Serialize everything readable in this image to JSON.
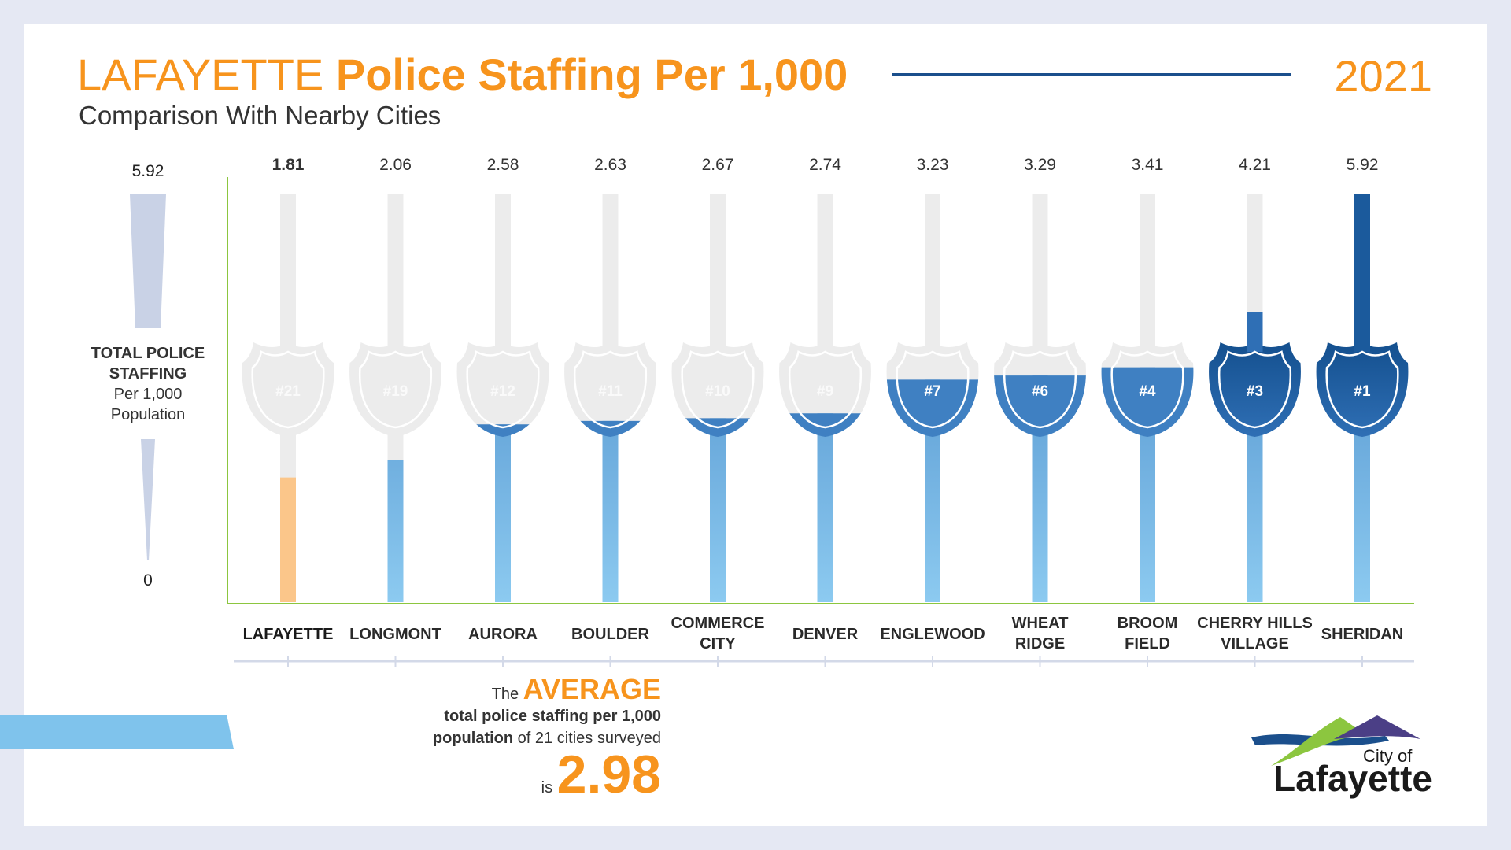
{
  "title": {
    "city": "LAFAYETTE",
    "main": "Police Staffing Per 1,000",
    "year": "2021",
    "subtitle": "Comparison With Nearby Cities"
  },
  "scale": {
    "top_value": "5.92",
    "bottom_value": "0",
    "label_bold": "TOTAL POLICE STAFFING",
    "label_regular": "Per 1,000 Population"
  },
  "average": {
    "the": "The",
    "word": "AVERAGE",
    "line1": "total police staffing per 1,000",
    "line2_bold": "population",
    "line2_rest": "of 21 cities surveyed",
    "is": "is",
    "value": "2.98"
  },
  "logo": {
    "city_of": "City of",
    "name": "Lafayette"
  },
  "colors": {
    "orange": "#f7941d",
    "highlight_fill": "#fbc68a",
    "blue_dark": "#1b5a9c",
    "blue_mid": "#3f80c2",
    "blue_light": "#8ccaf0",
    "track_gray": "#ececec",
    "axis_green": "#8cc63f",
    "navy_rule": "#1b4f8c"
  },
  "chart_data": {
    "type": "bar",
    "title": "Police Staffing Per 1,000",
    "ylabel": "TOTAL POLICE STAFFING Per 1,000 Population",
    "ylim": [
      0,
      5.92
    ],
    "grid": false,
    "categories": [
      "LAFAYETTE",
      "LONGMONT",
      "AURORA",
      "BOULDER",
      "COMMERCE CITY",
      "DENVER",
      "ENGLEWOOD",
      "WHEAT RIDGE",
      "BROOM FIELD",
      "CHERRY HILLS VILLAGE",
      "SHERIDAN"
    ],
    "category_lines": [
      [
        "LAFAYETTE"
      ],
      [
        "LONGMONT"
      ],
      [
        "AURORA"
      ],
      [
        "BOULDER"
      ],
      [
        "COMMERCE",
        "CITY"
      ],
      [
        "DENVER"
      ],
      [
        "ENGLEWOOD"
      ],
      [
        "WHEAT",
        "RIDGE"
      ],
      [
        "BROOM",
        "FIELD"
      ],
      [
        "CHERRY HILLS",
        "VILLAGE"
      ],
      [
        "SHERIDAN"
      ]
    ],
    "values": [
      1.81,
      2.06,
      2.58,
      2.63,
      2.67,
      2.74,
      3.23,
      3.29,
      3.41,
      4.21,
      5.92
    ],
    "value_labels": [
      "1.81",
      "2.06",
      "2.58",
      "2.63",
      "2.67",
      "2.74",
      "3.23",
      "3.29",
      "3.41",
      "4.21",
      "5.92"
    ],
    "ranks": [
      "#21",
      "#19",
      "#12",
      "#11",
      "#10",
      "#9",
      "#7",
      "#6",
      "#4",
      "#3",
      "#1"
    ],
    "highlight": "LAFAYETTE"
  }
}
